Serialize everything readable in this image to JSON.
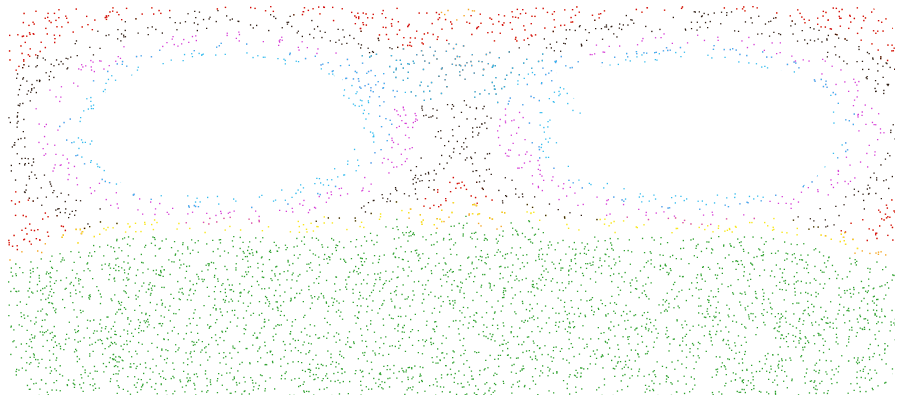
{
  "figure": {
    "description_hidden": "",
    "colors": {
      "background": "#ffffff",
      "outer_band": "#f5a623",
      "dark_band": "#2b1a10",
      "red_accent": "#d0021b",
      "yellow_band": "#f8e71c",
      "magenta_band": "#d63cd6",
      "cyan_band": "#33bbee",
      "green_field": "#2ca02c"
    },
    "regions": [
      {
        "name": "outer-orange-band",
        "color": "#f5a623"
      },
      {
        "name": "dark-band",
        "color": "#2b1a10"
      },
      {
        "name": "magenta-band",
        "color": "#d63cd6"
      },
      {
        "name": "cyan-band",
        "color": "#33bbee"
      },
      {
        "name": "yellow-islands",
        "color": "#f8e71c"
      },
      {
        "name": "green-chaotic-sea",
        "color": "#2ca02c"
      }
    ]
  }
}
